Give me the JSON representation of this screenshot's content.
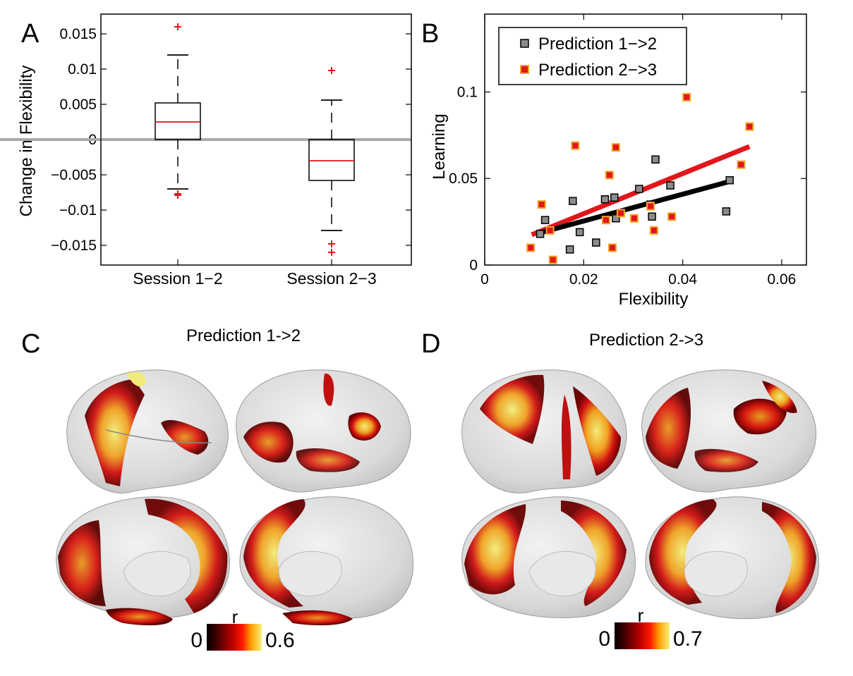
{
  "panels": {
    "a": {
      "letter": "A"
    },
    "b": {
      "letter": "B"
    },
    "c": {
      "letter": "C",
      "title": "Prediction 1->2",
      "colorbar": {
        "label": "r",
        "min_label": "0",
        "max_label": "0.6"
      }
    },
    "d": {
      "letter": "D",
      "title": "Prediction 2->3",
      "colorbar": {
        "label": "r",
        "min_label": "0",
        "max_label": "0.7"
      }
    }
  },
  "chart_data": [
    {
      "type": "box",
      "ylabel": "Change in Flexibility",
      "xlabel": "",
      "ylim": [
        -0.0178,
        0.0178
      ],
      "yticks": [
        0.015,
        0.01,
        0.005,
        0,
        -0.005,
        -0.01,
        -0.015
      ],
      "ytick_labels": [
        "0.015",
        "0.01",
        "0.005",
        "0",
        "−0.005",
        "−0.01",
        "−0.015"
      ],
      "categories": [
        "Session 1−2",
        "Session 2−3"
      ],
      "boxes": [
        {
          "category": "Session 1−2",
          "whisker_low": -0.007,
          "q1": 0.0,
          "median": 0.0025,
          "q3": 0.0052,
          "whisker_high": 0.012,
          "outliers": [
            0.016,
            -0.0077,
            -0.0079
          ]
        },
        {
          "category": "Session 2−3",
          "whisker_low": -0.0129,
          "q1": -0.0058,
          "median": -0.003,
          "q3": 0.0,
          "whisker_high": 0.0056,
          "outliers": [
            0.0098,
            -0.0148,
            -0.016
          ]
        }
      ],
      "reference_line": 0,
      "colors": {
        "box": "#000000",
        "median": "#e0161b",
        "outlier": "#e0161b",
        "zero_line": "#a9a9a9"
      }
    },
    {
      "type": "scatter",
      "xlabel": "Flexibility",
      "ylabel": "Learning",
      "xlim": [
        0,
        0.065
      ],
      "ylim": [
        0,
        0.145
      ],
      "xticks": [
        0,
        0.02,
        0.04,
        0.06
      ],
      "xtick_labels": [
        "0",
        "0.02",
        "0.04",
        "0.06"
      ],
      "yticks": [
        0,
        0.05,
        0.1
      ],
      "ytick_labels": [
        "0",
        "0.05",
        "0.1"
      ],
      "legend_position": "top-left",
      "series": [
        {
          "name": "Prediction 1−>2",
          "marker_fill": "#8c8c8c",
          "marker_edge": "#000000",
          "line_color": "#000000",
          "points": [
            [
              0.0112,
              0.018
            ],
            [
              0.0122,
              0.026
            ],
            [
              0.0172,
              0.009
            ],
            [
              0.0178,
              0.037
            ],
            [
              0.0192,
              0.019
            ],
            [
              0.0225,
              0.013
            ],
            [
              0.0243,
              0.038
            ],
            [
              0.0262,
              0.039
            ],
            [
              0.0265,
              0.027
            ],
            [
              0.0312,
              0.044
            ],
            [
              0.0335,
              0.035
            ],
            [
              0.0338,
              0.028
            ],
            [
              0.0345,
              0.061
            ],
            [
              0.0375,
              0.046
            ],
            [
              0.0488,
              0.031
            ],
            [
              0.0495,
              0.049
            ]
          ],
          "fit": [
            [
              0.011,
              0.0185
            ],
            [
              0.0495,
              0.0483
            ]
          ]
        },
        {
          "name": "Prediction 2−>3",
          "marker_fill": "#e0161b",
          "marker_edge": "#f5a323",
          "line_color": "#e0161b",
          "points": [
            [
              0.0093,
              0.01
            ],
            [
              0.0115,
              0.035
            ],
            [
              0.0132,
              0.02
            ],
            [
              0.0138,
              0.003
            ],
            [
              0.0183,
              0.069
            ],
            [
              0.0245,
              0.026
            ],
            [
              0.0252,
              0.052
            ],
            [
              0.0258,
              0.01
            ],
            [
              0.0265,
              0.068
            ],
            [
              0.0275,
              0.03
            ],
            [
              0.0302,
              0.027
            ],
            [
              0.0335,
              0.034
            ],
            [
              0.0342,
              0.02
            ],
            [
              0.0378,
              0.028
            ],
            [
              0.0408,
              0.097
            ],
            [
              0.0518,
              0.058
            ],
            [
              0.0535,
              0.08
            ]
          ],
          "fit": [
            [
              0.0095,
              0.0175
            ],
            [
              0.0535,
              0.0685
            ]
          ]
        }
      ]
    }
  ]
}
